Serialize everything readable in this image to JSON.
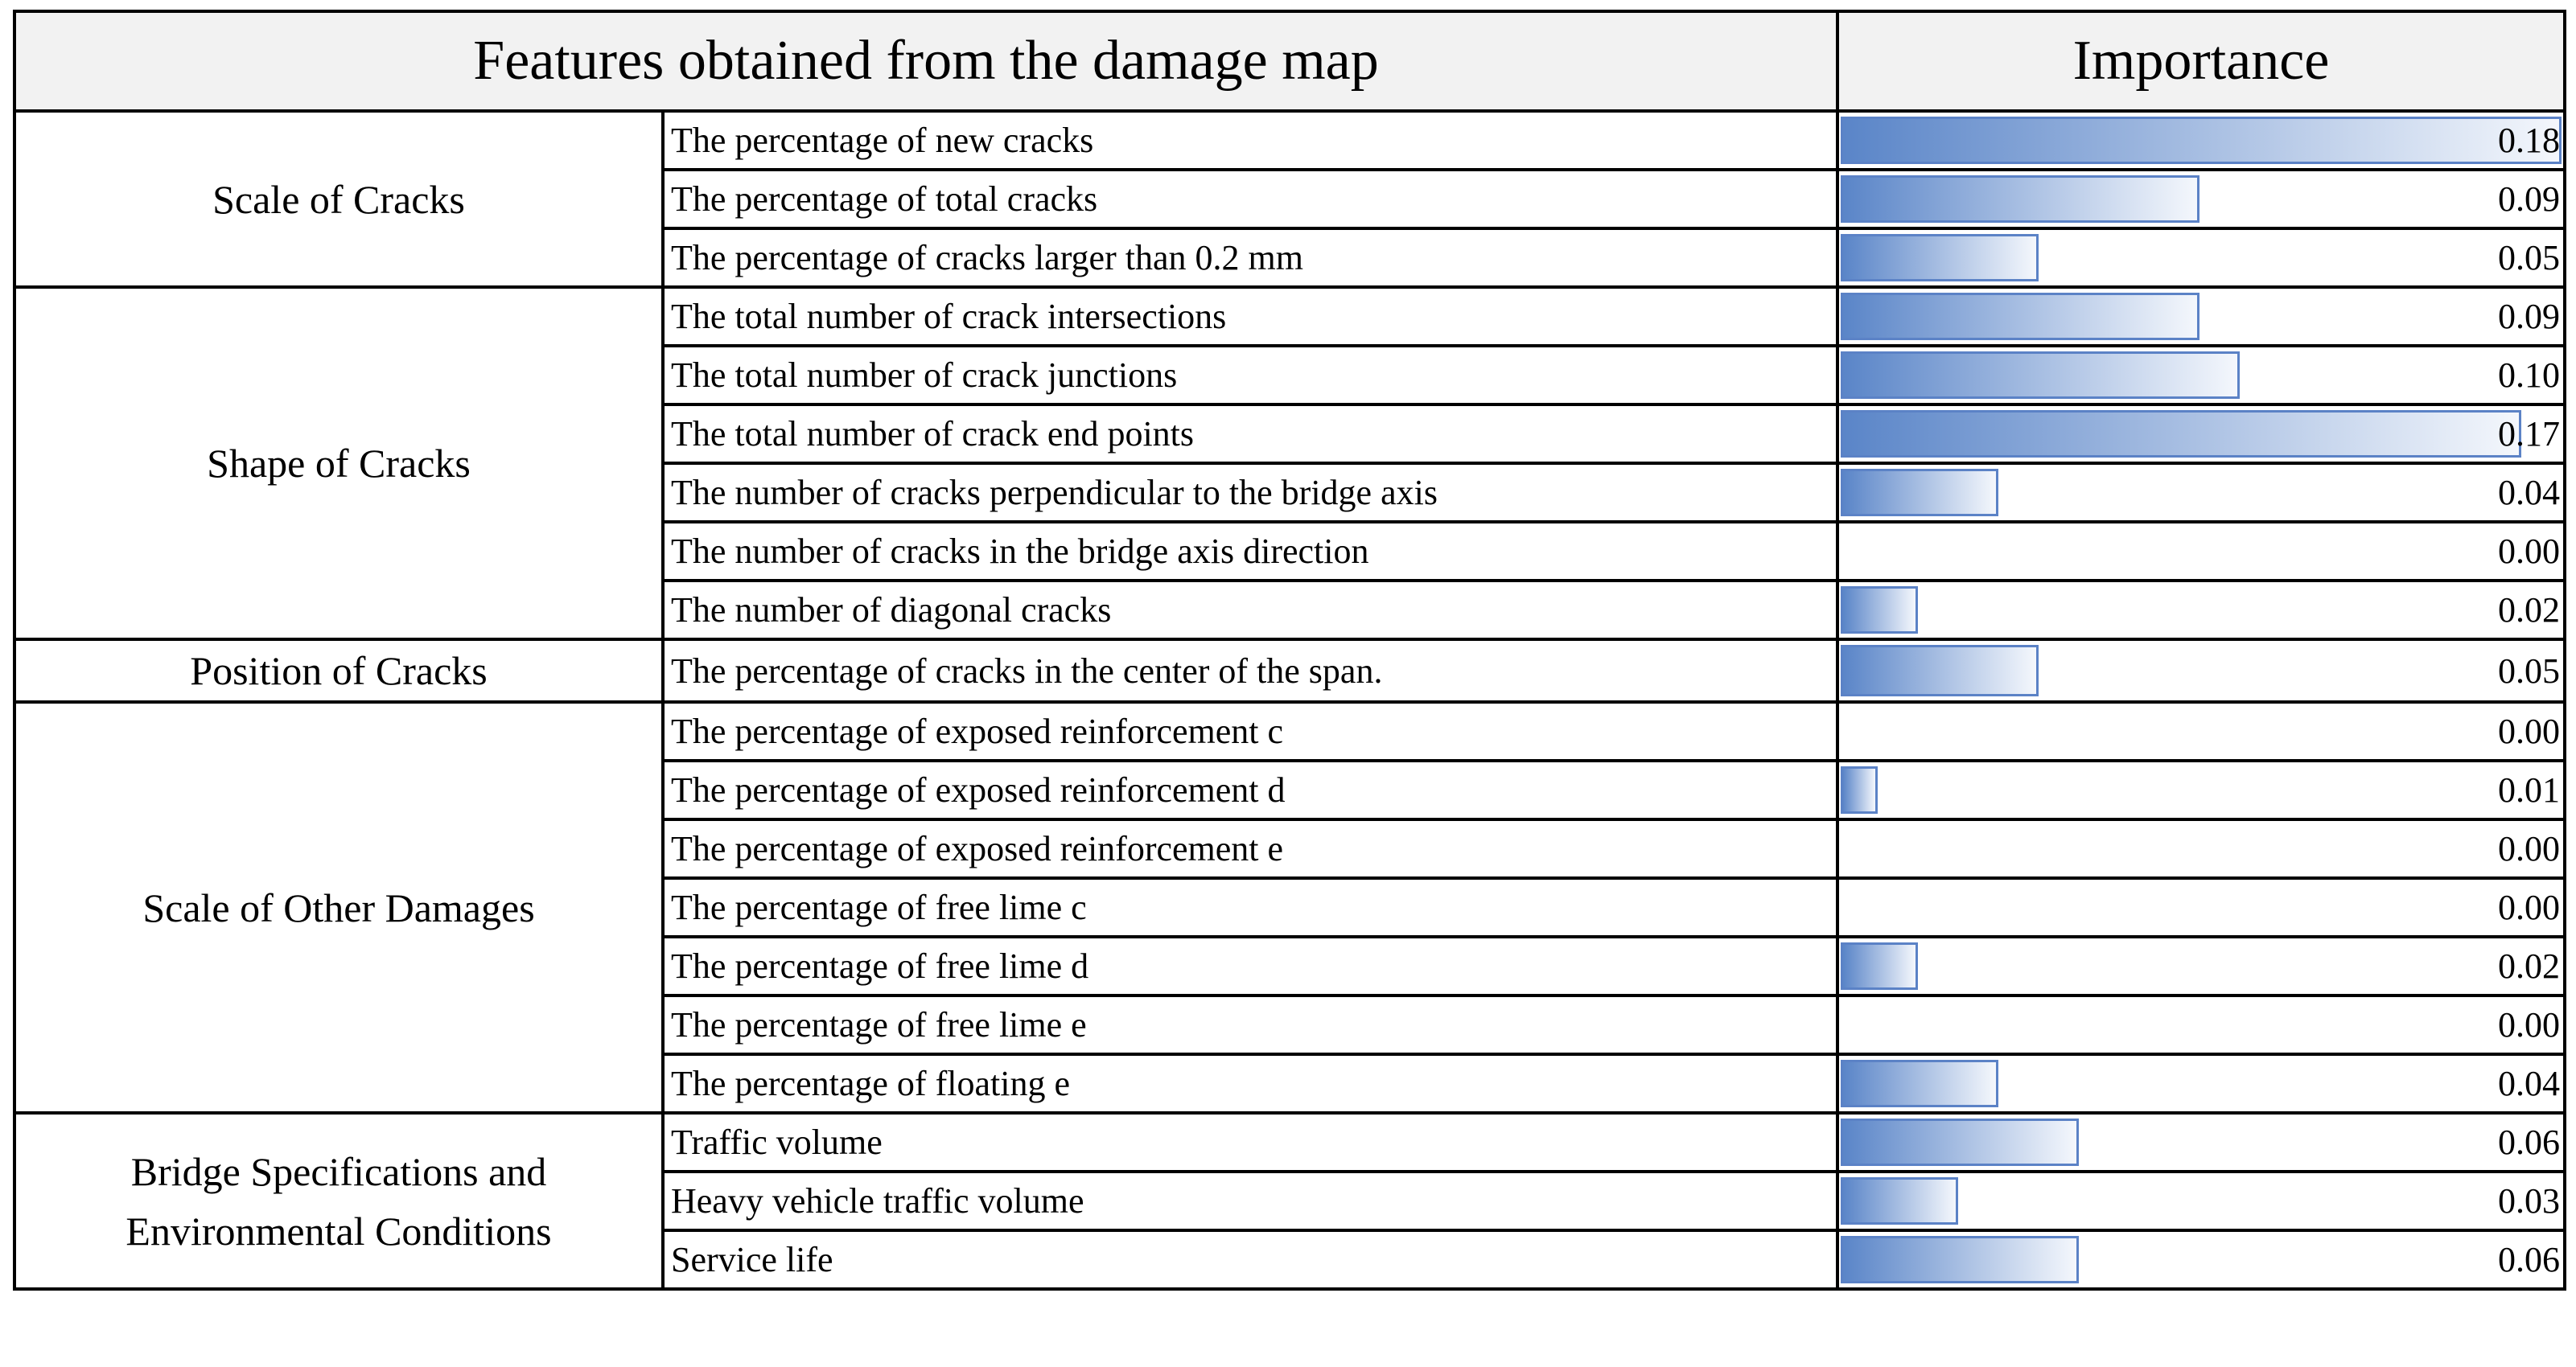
{
  "table": {
    "header": [
      "Features obtained from the damage map",
      "Importance"
    ],
    "groups": [
      {
        "name": "Scale of Cracks",
        "rows": [
          {
            "feature": "The percentage of new cracks",
            "importance": 0.18
          },
          {
            "feature": "The percentage of total cracks",
            "importance": 0.09
          },
          {
            "feature": "The percentage of cracks larger than 0.2 mm",
            "importance": 0.05
          }
        ]
      },
      {
        "name": "Shape of Cracks",
        "rows": [
          {
            "feature": "The total number of crack intersections",
            "importance": 0.09
          },
          {
            "feature": "The total number of crack junctions",
            "importance": 0.1,
            "label": "0.10"
          },
          {
            "feature": "The total number of crack end points",
            "importance": 0.17
          },
          {
            "feature": "The number of cracks perpendicular to the bridge axis",
            "importance": 0.04
          },
          {
            "feature": "The number of cracks in the bridge axis direction",
            "importance": 0,
            "label": "0.00"
          },
          {
            "feature": "The number of diagonal cracks",
            "importance": 0.02
          }
        ]
      },
      {
        "name": "Position of Cracks",
        "rows": [
          {
            "feature": "The percentage of cracks in the center of the span.",
            "importance": 0.05
          }
        ]
      },
      {
        "name": "Scale of Other Damages",
        "rows": [
          {
            "feature": "The percentage of exposed reinforcement c",
            "importance": 0,
            "label": "0.00"
          },
          {
            "feature": "The percentage of exposed reinforcement d",
            "importance": 0.01
          },
          {
            "feature": "The percentage of exposed reinforcement e",
            "importance": 0,
            "label": "0.00"
          },
          {
            "feature": "The percentage of free lime c",
            "importance": 0,
            "label": "0.00"
          },
          {
            "feature": "The percentage of free lime d",
            "importance": 0.02
          },
          {
            "feature": "The percentage of free lime e",
            "importance": 0,
            "label": "0.00"
          },
          {
            "feature": "The percentage of floating e",
            "importance": 0.04
          }
        ]
      },
      {
        "name": "Bridge Specifications and Environmental Conditions",
        "rows": [
          {
            "feature": "Traffic volume",
            "importance": 0.06
          },
          {
            "feature": "Heavy vehicle traffic volume",
            "importance": 0.03
          },
          {
            "feature": "Service life",
            "importance": 0.06
          }
        ]
      }
    ]
  }
}
